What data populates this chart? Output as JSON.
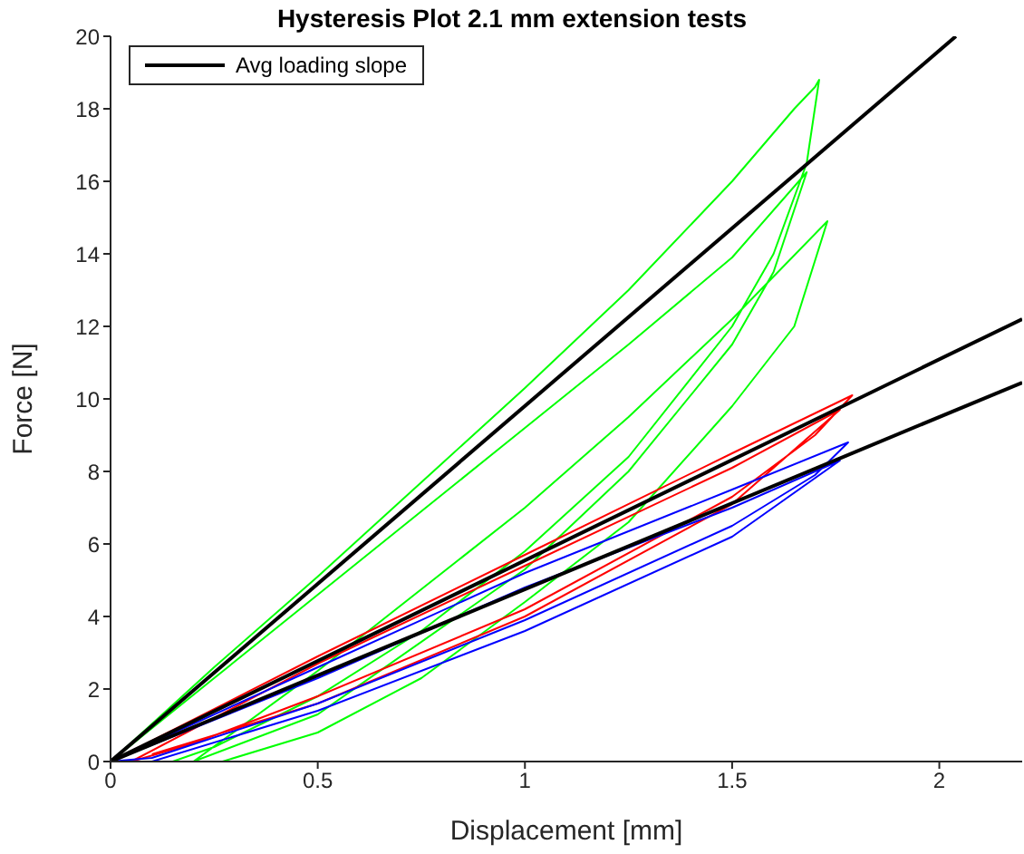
{
  "chart_data": {
    "type": "line",
    "title": "Hysteresis Plot 2.1 mm extension tests",
    "xlabel": "Displacement [mm]",
    "ylabel": "Force [N]",
    "xlim": [
      0,
      2.2
    ],
    "xticks": [
      0,
      0.5,
      1,
      1.5,
      2
    ],
    "ylim": [
      0,
      20
    ],
    "yticks": [
      0,
      2,
      4,
      6,
      8,
      10,
      12,
      14,
      16,
      18,
      20
    ],
    "grid": false,
    "legend": "top left",
    "marker": "none",
    "line_style": "solid",
    "series": [
      {
        "color": "#00ff00",
        "x": [
          0,
          0.25,
          0.5,
          1,
          1.25,
          1.5,
          1.65,
          1.7,
          1.71,
          1.68,
          1.6,
          1.5,
          1.25,
          1,
          0.75,
          0.5,
          0.25,
          0.15,
          0,
          0.25,
          0.5,
          1,
          1.25,
          1.5,
          1.68,
          1.6,
          1.5,
          1.25,
          1,
          0.5,
          0.2,
          0.2,
          0.5,
          1,
          1.25,
          1.5,
          1.73,
          1.65,
          1.5,
          1.25,
          1,
          0.75,
          0.5,
          0.27
        ],
        "values": [
          0,
          2.6,
          5.1,
          10.3,
          13,
          16,
          18,
          18.6,
          18.8,
          16.5,
          14,
          12,
          8.4,
          5.8,
          3.6,
          1.8,
          0.4,
          0,
          0,
          2.3,
          4.6,
          9.2,
          11.5,
          13.9,
          16.25,
          13.5,
          11.5,
          8,
          5.3,
          1.3,
          0,
          0,
          2.5,
          7,
          9.5,
          12.2,
          14.9,
          12,
          9.8,
          6.6,
          4.4,
          2.3,
          0.8,
          0
        ]
      },
      {
        "color": "#ff0000",
        "x": [
          0,
          0.5,
          1,
          1.5,
          1.79,
          1.7,
          1.5,
          1,
          0.5,
          0.2,
          0.05,
          0.5,
          1,
          1.5,
          1.76,
          1.5,
          1,
          0.5,
          0.1
        ],
        "values": [
          0,
          2.9,
          5.7,
          8.5,
          10.1,
          9,
          7.3,
          4.2,
          1.8,
          0.5,
          0,
          2.7,
          5.4,
          8.1,
          9.7,
          7.1,
          4,
          1.6,
          0.2
        ]
      },
      {
        "color": "#0000ff",
        "x": [
          0,
          0.5,
          1,
          1.5,
          1.78,
          1.7,
          1.5,
          1,
          0.5,
          0.1,
          0,
          0.5,
          1,
          1.5,
          1.76,
          1.5,
          1,
          0.5,
          0.1
        ],
        "values": [
          0,
          2.6,
          5.2,
          7.5,
          8.8,
          7.9,
          6.5,
          3.9,
          1.6,
          0.1,
          0,
          2.3,
          4.8,
          7,
          8.3,
          6.2,
          3.6,
          1.4,
          0
        ]
      },
      {
        "name": "Avg loading slope",
        "color": "#000000",
        "x": [
          0,
          2.04
        ],
        "values": [
          0,
          20
        ]
      },
      {
        "color": "#000000",
        "x": [
          0,
          2.2
        ],
        "values": [
          0,
          12.2
        ]
      },
      {
        "color": "#000000",
        "x": [
          0,
          2.2
        ],
        "values": [
          0,
          10.45
        ]
      }
    ]
  }
}
